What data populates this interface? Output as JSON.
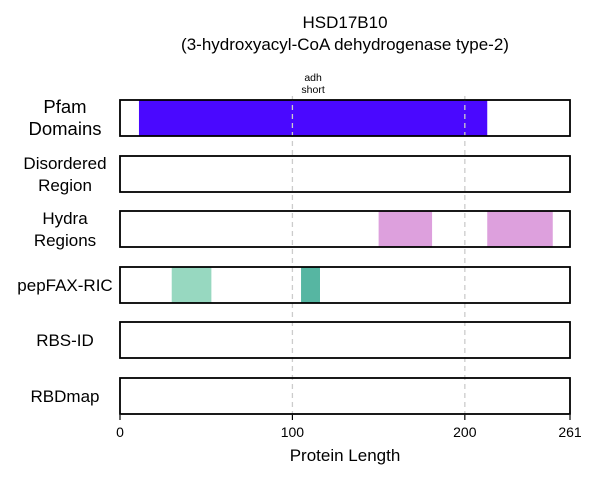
{
  "chart_data": {
    "type": "bar",
    "title": "HSD17B10",
    "subtitle": "(3-hydroxyacyl-CoA dehydrogenase type-2)",
    "xlabel": "Protein Length",
    "xlim": [
      0,
      261
    ],
    "xticks": [
      0,
      100,
      200,
      261
    ],
    "gridlines_x": [
      100,
      200
    ],
    "tracks": [
      {
        "label": [
          "Pfam",
          "Domains"
        ],
        "segments": [
          {
            "start": 11,
            "end": 213,
            "color": "#4a08ff",
            "label": [
              "adh",
              "short"
            ]
          }
        ]
      },
      {
        "label": [
          "Disordered",
          "Region"
        ],
        "segments": []
      },
      {
        "label": [
          "Hydra",
          "Regions"
        ],
        "segments": [
          {
            "start": 150,
            "end": 181,
            "color": "#dda0dd"
          },
          {
            "start": 213,
            "end": 251,
            "color": "#dda0dd"
          }
        ]
      },
      {
        "label": [
          "pepFAX-RIC"
        ],
        "segments": [
          {
            "start": 30,
            "end": 53,
            "color": "#97d8c0"
          },
          {
            "start": 105,
            "end": 116,
            "color": "#56b6a2"
          }
        ]
      },
      {
        "label": [
          "RBS-ID"
        ],
        "segments": []
      },
      {
        "label": [
          "RBDmap"
        ],
        "segments": []
      }
    ]
  }
}
